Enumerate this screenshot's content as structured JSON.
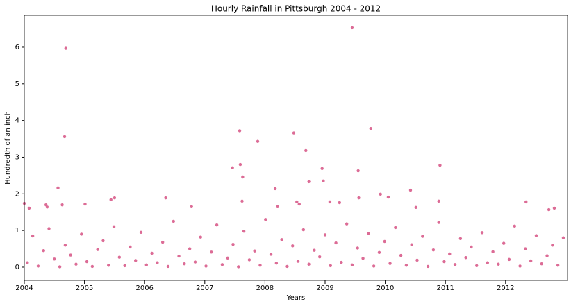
{
  "chart_data": {
    "type": "scatter",
    "title": "Hourly Rainfall in Pittsburgh 2004 - 2012",
    "x_label": "Years",
    "y_label": "Hundredth of an inch",
    "xlim": [
      2004,
      2013.03
    ],
    "ylim": [
      -0.36,
      6.87
    ],
    "xticks": [
      2004,
      2005,
      2006,
      2007,
      2008,
      2009,
      2010,
      2011,
      2012
    ],
    "yticks": [
      0,
      1,
      2,
      3,
      4,
      5,
      6
    ],
    "grid": false,
    "series": [
      {
        "name": "Rainfall",
        "color": "#dc6c96",
        "x": [
          2004.69,
          2009.45,
          2004.67,
          2007.58,
          2007.88,
          2008.48,
          2008.68,
          2009.76,
          2007.46,
          2007.59,
          2007.63,
          2008.95,
          2008.97,
          2008.73,
          2009.55,
          2010.91,
          2004.56,
          2008.17,
          2010.42,
          2009.92,
          2004.0,
          2004.08,
          2004.36,
          2004.38,
          2004.63,
          2005.01,
          2005.44,
          2005.5,
          2006.35,
          2006.78,
          2007.62,
          2008.53,
          2008.57,
          2009.08,
          2009.24,
          2009.56,
          2010.05,
          2010.51,
          2010.89,
          2012.34,
          2012.72,
          2012.81,
          2008.21,
          2004.05,
          2004.14,
          2004.23,
          2004.32,
          2004.41,
          2004.5,
          2004.59,
          2004.68,
          2004.77,
          2004.86,
          2004.95,
          2005.04,
          2005.13,
          2005.22,
          2005.31,
          2005.4,
          2005.49,
          2005.58,
          2005.67,
          2005.76,
          2005.85,
          2005.94,
          2006.03,
          2006.12,
          2006.21,
          2006.3,
          2006.39,
          2006.48,
          2006.57,
          2006.66,
          2006.75,
          2006.84,
          2006.93,
          2007.02,
          2007.11,
          2007.2,
          2007.29,
          2007.38,
          2007.47,
          2007.56,
          2007.65,
          2007.74,
          2007.83,
          2007.92,
          2008.01,
          2008.1,
          2008.19,
          2008.28,
          2008.37,
          2008.46,
          2008.55,
          2008.64,
          2008.73,
          2008.82,
          2008.91,
          2009.0,
          2009.09,
          2009.18,
          2009.27,
          2009.36,
          2009.45,
          2009.54,
          2009.63,
          2009.72,
          2009.81,
          2009.9,
          2009.99,
          2010.08,
          2010.17,
          2010.26,
          2010.35,
          2010.44,
          2010.53,
          2010.62,
          2010.71,
          2010.8,
          2010.89,
          2010.98,
          2011.07,
          2011.16,
          2011.25,
          2011.34,
          2011.43,
          2011.52,
          2011.61,
          2011.7,
          2011.79,
          2011.88,
          2011.97,
          2012.06,
          2012.15,
          2012.24,
          2012.33,
          2012.42,
          2012.51,
          2012.6,
          2012.69,
          2012.78,
          2012.87,
          2012.96
        ],
        "values": [
          5.97,
          6.53,
          3.56,
          3.72,
          3.43,
          3.66,
          3.18,
          3.78,
          2.71,
          2.8,
          2.46,
          2.69,
          2.35,
          2.33,
          2.63,
          2.78,
          2.16,
          2.14,
          2.1,
          1.99,
          1.74,
          1.61,
          1.7,
          1.64,
          1.7,
          1.72,
          1.84,
          1.89,
          1.89,
          1.65,
          1.8,
          1.78,
          1.72,
          1.78,
          1.76,
          1.89,
          1.91,
          1.63,
          1.8,
          1.78,
          1.57,
          1.61,
          1.65,
          0.12,
          0.85,
          0.03,
          0.45,
          1.05,
          0.22,
          0.01,
          0.6,
          0.33,
          0.08,
          0.9,
          0.15,
          0.02,
          0.48,
          0.72,
          0.05,
          1.1,
          0.27,
          0.04,
          0.55,
          0.18,
          0.95,
          0.06,
          0.38,
          0.12,
          0.68,
          0.02,
          1.25,
          0.3,
          0.09,
          0.5,
          0.14,
          0.82,
          0.03,
          0.41,
          1.15,
          0.07,
          0.25,
          0.62,
          0.01,
          0.98,
          0.2,
          0.44,
          0.05,
          1.3,
          0.35,
          0.11,
          0.75,
          0.02,
          0.58,
          0.16,
          1.02,
          0.08,
          0.46,
          0.28,
          0.88,
          0.04,
          0.66,
          0.13,
          1.18,
          0.06,
          0.52,
          0.24,
          0.92,
          0.03,
          0.4,
          0.7,
          0.1,
          1.08,
          0.32,
          0.05,
          0.61,
          0.19,
          0.84,
          0.02,
          0.47,
          1.22,
          0.15,
          0.36,
          0.07,
          0.78,
          0.26,
          0.55,
          0.04,
          0.94,
          0.12,
          0.42,
          0.08,
          0.65,
          0.21,
          1.12,
          0.03,
          0.5,
          0.17,
          0.86,
          0.09,
          0.31,
          0.6,
          0.05,
          0.8
        ]
      }
    ]
  }
}
